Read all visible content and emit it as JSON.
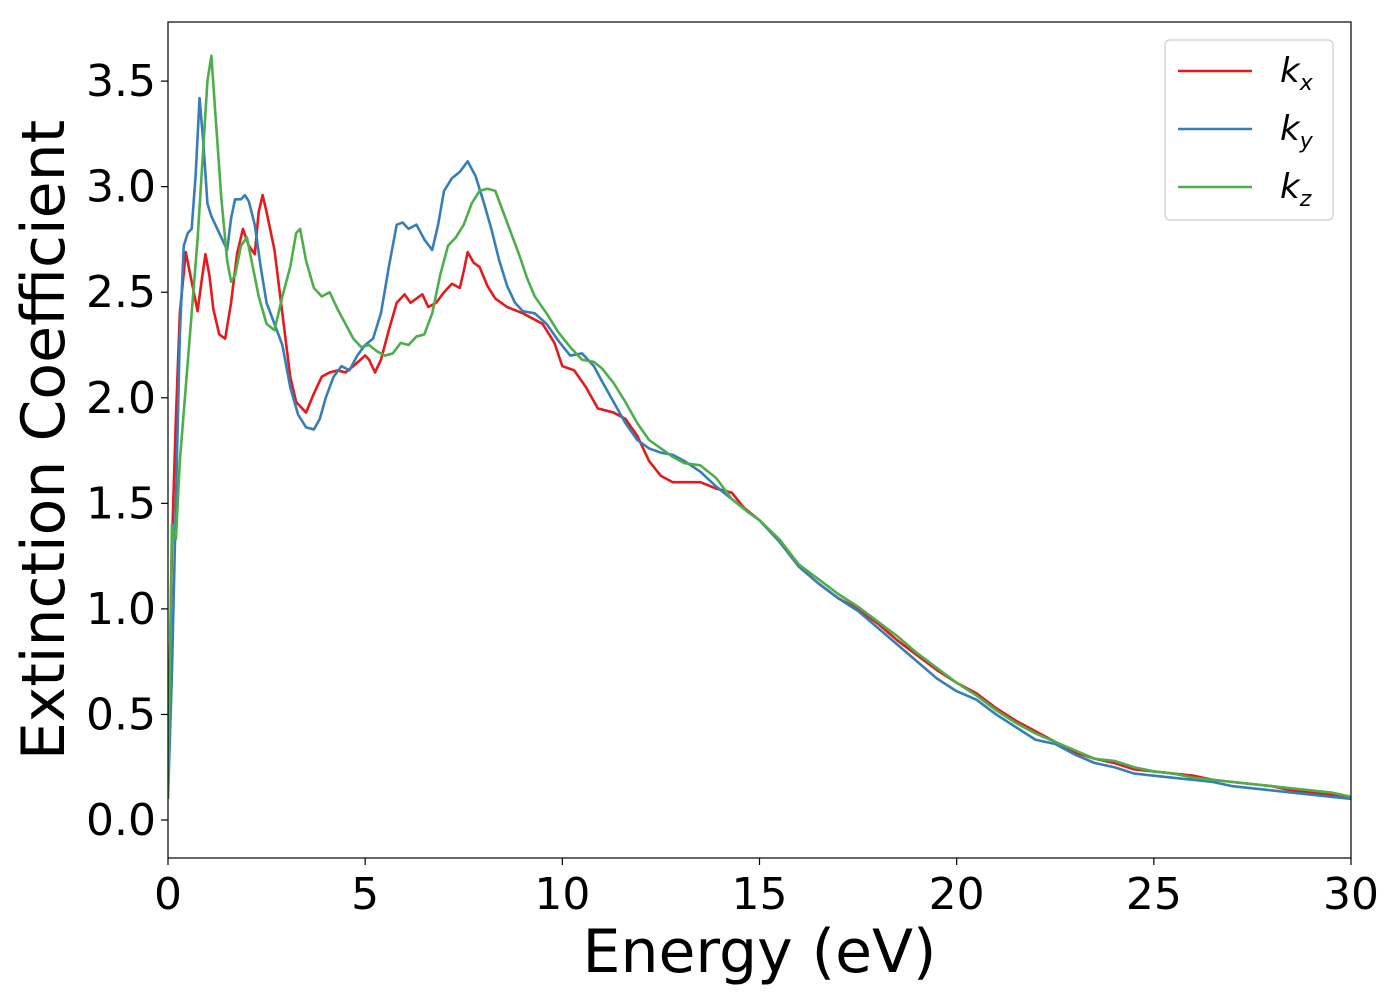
{
  "chart_data": {
    "type": "line",
    "xlabel": "Energy (eV)",
    "ylabel": "Extinction Coefficient",
    "xlim": [
      0,
      30
    ],
    "ylim": [
      -0.18,
      3.78
    ],
    "xticks": [
      "0",
      "5",
      "10",
      "15",
      "20",
      "25",
      "30"
    ],
    "yticks": [
      "0.0",
      "0.5",
      "1.0",
      "1.5",
      "2.0",
      "2.5",
      "3.0",
      "3.5"
    ],
    "grid": false,
    "legend_position": "top-right",
    "series": [
      {
        "name": "k",
        "subscript": "x",
        "color": "#e41a1c",
        "points": [
          [
            0,
            0.2
          ],
          [
            0.1,
            1.3
          ],
          [
            0.2,
            1.9
          ],
          [
            0.3,
            2.4
          ],
          [
            0.45,
            2.69
          ],
          [
            0.6,
            2.55
          ],
          [
            0.75,
            2.41
          ],
          [
            0.85,
            2.55
          ],
          [
            0.95,
            2.68
          ],
          [
            1.05,
            2.58
          ],
          [
            1.15,
            2.42
          ],
          [
            1.3,
            2.3
          ],
          [
            1.45,
            2.28
          ],
          [
            1.6,
            2.45
          ],
          [
            1.75,
            2.68
          ],
          [
            1.9,
            2.8
          ],
          [
            2.05,
            2.72
          ],
          [
            2.2,
            2.68
          ],
          [
            2.3,
            2.88
          ],
          [
            2.4,
            2.96
          ],
          [
            2.5,
            2.88
          ],
          [
            2.7,
            2.7
          ],
          [
            2.9,
            2.4
          ],
          [
            3.1,
            2.1
          ],
          [
            3.25,
            1.98
          ],
          [
            3.5,
            1.93
          ],
          [
            3.7,
            2.02
          ],
          [
            3.9,
            2.1
          ],
          [
            4.1,
            2.12
          ],
          [
            4.3,
            2.13
          ],
          [
            4.5,
            2.12
          ],
          [
            4.7,
            2.15
          ],
          [
            5.0,
            2.2
          ],
          [
            5.1,
            2.18
          ],
          [
            5.25,
            2.12
          ],
          [
            5.4,
            2.18
          ],
          [
            5.6,
            2.32
          ],
          [
            5.8,
            2.45
          ],
          [
            6.0,
            2.49
          ],
          [
            6.15,
            2.45
          ],
          [
            6.3,
            2.47
          ],
          [
            6.45,
            2.49
          ],
          [
            6.6,
            2.43
          ],
          [
            6.8,
            2.45
          ],
          [
            7.0,
            2.5
          ],
          [
            7.2,
            2.54
          ],
          [
            7.4,
            2.52
          ],
          [
            7.5,
            2.6
          ],
          [
            7.6,
            2.69
          ],
          [
            7.75,
            2.64
          ],
          [
            7.9,
            2.62
          ],
          [
            8.1,
            2.53
          ],
          [
            8.3,
            2.47
          ],
          [
            8.6,
            2.43
          ],
          [
            9.0,
            2.4
          ],
          [
            9.3,
            2.37
          ],
          [
            9.5,
            2.35
          ],
          [
            9.8,
            2.26
          ],
          [
            10.0,
            2.15
          ],
          [
            10.3,
            2.13
          ],
          [
            10.6,
            2.05
          ],
          [
            10.9,
            1.95
          ],
          [
            11.3,
            1.93
          ],
          [
            11.6,
            1.9
          ],
          [
            11.9,
            1.82
          ],
          [
            12.2,
            1.7
          ],
          [
            12.5,
            1.63
          ],
          [
            12.8,
            1.6
          ],
          [
            13.1,
            1.6
          ],
          [
            13.5,
            1.6
          ],
          [
            13.9,
            1.57
          ],
          [
            14.3,
            1.55
          ],
          [
            14.6,
            1.48
          ],
          [
            15.0,
            1.42
          ],
          [
            15.5,
            1.32
          ],
          [
            16.0,
            1.2
          ],
          [
            16.5,
            1.12
          ],
          [
            17.0,
            1.05
          ],
          [
            17.5,
            1.0
          ],
          [
            18.0,
            0.93
          ],
          [
            18.5,
            0.85
          ],
          [
            19.0,
            0.78
          ],
          [
            19.5,
            0.71
          ],
          [
            20.0,
            0.65
          ],
          [
            20.5,
            0.6
          ],
          [
            21.0,
            0.53
          ],
          [
            21.5,
            0.47
          ],
          [
            22.0,
            0.42
          ],
          [
            22.5,
            0.37
          ],
          [
            23.0,
            0.32
          ],
          [
            23.5,
            0.29
          ],
          [
            24.0,
            0.27
          ],
          [
            24.5,
            0.24
          ],
          [
            25.0,
            0.23
          ],
          [
            25.5,
            0.22
          ],
          [
            26.0,
            0.21
          ],
          [
            26.5,
            0.19
          ],
          [
            27.0,
            0.18
          ],
          [
            27.5,
            0.17
          ],
          [
            28.0,
            0.16
          ],
          [
            28.5,
            0.14
          ],
          [
            29.0,
            0.13
          ],
          [
            29.5,
            0.12
          ],
          [
            30.0,
            0.11
          ]
        ]
      },
      {
        "name": "k",
        "subscript": "y",
        "color": "#377eb8",
        "points": [
          [
            0,
            0.1
          ],
          [
            0.1,
            0.7
          ],
          [
            0.2,
            1.5
          ],
          [
            0.3,
            2.3
          ],
          [
            0.4,
            2.72
          ],
          [
            0.5,
            2.78
          ],
          [
            0.6,
            2.8
          ],
          [
            0.7,
            3.05
          ],
          [
            0.8,
            3.42
          ],
          [
            0.9,
            3.2
          ],
          [
            1.0,
            2.92
          ],
          [
            1.1,
            2.86
          ],
          [
            1.2,
            2.82
          ],
          [
            1.35,
            2.76
          ],
          [
            1.5,
            2.7
          ],
          [
            1.6,
            2.85
          ],
          [
            1.7,
            2.94
          ],
          [
            1.85,
            2.94
          ],
          [
            1.95,
            2.96
          ],
          [
            2.05,
            2.93
          ],
          [
            2.2,
            2.82
          ],
          [
            2.35,
            2.62
          ],
          [
            2.5,
            2.45
          ],
          [
            2.7,
            2.35
          ],
          [
            2.9,
            2.25
          ],
          [
            3.1,
            2.05
          ],
          [
            3.3,
            1.92
          ],
          [
            3.5,
            1.86
          ],
          [
            3.7,
            1.85
          ],
          [
            3.85,
            1.9
          ],
          [
            4.0,
            2.0
          ],
          [
            4.2,
            2.1
          ],
          [
            4.4,
            2.15
          ],
          [
            4.6,
            2.13
          ],
          [
            4.8,
            2.2
          ],
          [
            5.0,
            2.25
          ],
          [
            5.2,
            2.28
          ],
          [
            5.4,
            2.4
          ],
          [
            5.6,
            2.62
          ],
          [
            5.8,
            2.82
          ],
          [
            5.95,
            2.83
          ],
          [
            6.1,
            2.8
          ],
          [
            6.3,
            2.82
          ],
          [
            6.5,
            2.75
          ],
          [
            6.7,
            2.7
          ],
          [
            6.85,
            2.82
          ],
          [
            7.0,
            2.98
          ],
          [
            7.2,
            3.04
          ],
          [
            7.4,
            3.07
          ],
          [
            7.6,
            3.12
          ],
          [
            7.8,
            3.05
          ],
          [
            8.0,
            2.93
          ],
          [
            8.2,
            2.8
          ],
          [
            8.4,
            2.65
          ],
          [
            8.6,
            2.53
          ],
          [
            8.8,
            2.45
          ],
          [
            9.0,
            2.41
          ],
          [
            9.3,
            2.4
          ],
          [
            9.6,
            2.35
          ],
          [
            9.9,
            2.27
          ],
          [
            10.2,
            2.2
          ],
          [
            10.5,
            2.21
          ],
          [
            10.8,
            2.15
          ],
          [
            11.0,
            2.08
          ],
          [
            11.3,
            1.98
          ],
          [
            11.6,
            1.88
          ],
          [
            11.9,
            1.8
          ],
          [
            12.2,
            1.76
          ],
          [
            12.5,
            1.74
          ],
          [
            12.8,
            1.73
          ],
          [
            13.1,
            1.7
          ],
          [
            13.5,
            1.65
          ],
          [
            13.9,
            1.58
          ],
          [
            14.3,
            1.52
          ],
          [
            14.7,
            1.46
          ],
          [
            15.0,
            1.42
          ],
          [
            15.5,
            1.32
          ],
          [
            16.0,
            1.2
          ],
          [
            16.5,
            1.12
          ],
          [
            17.0,
            1.05
          ],
          [
            17.5,
            0.99
          ],
          [
            18.0,
            0.91
          ],
          [
            18.5,
            0.83
          ],
          [
            19.0,
            0.75
          ],
          [
            19.5,
            0.67
          ],
          [
            20.0,
            0.61
          ],
          [
            20.5,
            0.57
          ],
          [
            21.0,
            0.5
          ],
          [
            21.5,
            0.44
          ],
          [
            22.0,
            0.38
          ],
          [
            22.5,
            0.36
          ],
          [
            23.0,
            0.31
          ],
          [
            23.5,
            0.27
          ],
          [
            24.0,
            0.25
          ],
          [
            24.5,
            0.22
          ],
          [
            25.0,
            0.21
          ],
          [
            25.5,
            0.2
          ],
          [
            26.0,
            0.19
          ],
          [
            26.5,
            0.18
          ],
          [
            27.0,
            0.16
          ],
          [
            27.5,
            0.15
          ],
          [
            28.0,
            0.14
          ],
          [
            28.5,
            0.13
          ],
          [
            29.0,
            0.12
          ],
          [
            29.5,
            0.11
          ],
          [
            30.0,
            0.1
          ]
        ]
      },
      {
        "name": "k",
        "subscript": "z",
        "color": "#4daf4a",
        "points": [
          [
            0,
            0.1
          ],
          [
            0.1,
            1.4
          ],
          [
            0.2,
            1.33
          ],
          [
            0.3,
            1.7
          ],
          [
            0.45,
            2.05
          ],
          [
            0.6,
            2.4
          ],
          [
            0.75,
            2.75
          ],
          [
            0.9,
            3.2
          ],
          [
            1.0,
            3.5
          ],
          [
            1.1,
            3.62
          ],
          [
            1.2,
            3.35
          ],
          [
            1.35,
            2.95
          ],
          [
            1.5,
            2.65
          ],
          [
            1.6,
            2.55
          ],
          [
            1.7,
            2.58
          ],
          [
            1.85,
            2.72
          ],
          [
            2.0,
            2.76
          ],
          [
            2.15,
            2.62
          ],
          [
            2.3,
            2.48
          ],
          [
            2.5,
            2.35
          ],
          [
            2.7,
            2.32
          ],
          [
            2.9,
            2.48
          ],
          [
            3.1,
            2.62
          ],
          [
            3.25,
            2.78
          ],
          [
            3.35,
            2.8
          ],
          [
            3.5,
            2.65
          ],
          [
            3.7,
            2.52
          ],
          [
            3.9,
            2.48
          ],
          [
            4.1,
            2.5
          ],
          [
            4.3,
            2.42
          ],
          [
            4.5,
            2.35
          ],
          [
            4.7,
            2.28
          ],
          [
            4.9,
            2.24
          ],
          [
            5.1,
            2.25
          ],
          [
            5.3,
            2.22
          ],
          [
            5.5,
            2.2
          ],
          [
            5.7,
            2.21
          ],
          [
            5.9,
            2.26
          ],
          [
            6.1,
            2.25
          ],
          [
            6.3,
            2.29
          ],
          [
            6.5,
            2.3
          ],
          [
            6.7,
            2.4
          ],
          [
            6.9,
            2.58
          ],
          [
            7.1,
            2.72
          ],
          [
            7.3,
            2.76
          ],
          [
            7.5,
            2.82
          ],
          [
            7.7,
            2.92
          ],
          [
            7.9,
            2.98
          ],
          [
            8.1,
            2.99
          ],
          [
            8.3,
            2.98
          ],
          [
            8.5,
            2.88
          ],
          [
            8.7,
            2.78
          ],
          [
            8.9,
            2.68
          ],
          [
            9.1,
            2.57
          ],
          [
            9.3,
            2.48
          ],
          [
            9.6,
            2.4
          ],
          [
            9.9,
            2.31
          ],
          [
            10.2,
            2.24
          ],
          [
            10.5,
            2.18
          ],
          [
            10.8,
            2.17
          ],
          [
            11.0,
            2.14
          ],
          [
            11.3,
            2.07
          ],
          [
            11.6,
            1.98
          ],
          [
            11.9,
            1.88
          ],
          [
            12.2,
            1.8
          ],
          [
            12.5,
            1.76
          ],
          [
            12.8,
            1.72
          ],
          [
            13.1,
            1.69
          ],
          [
            13.5,
            1.68
          ],
          [
            13.9,
            1.62
          ],
          [
            14.3,
            1.52
          ],
          [
            14.7,
            1.46
          ],
          [
            15.0,
            1.42
          ],
          [
            15.5,
            1.33
          ],
          [
            16.0,
            1.21
          ],
          [
            16.5,
            1.14
          ],
          [
            17.0,
            1.07
          ],
          [
            17.5,
            1.01
          ],
          [
            18.0,
            0.94
          ],
          [
            18.5,
            0.87
          ],
          [
            19.0,
            0.79
          ],
          [
            19.5,
            0.72
          ],
          [
            20.0,
            0.65
          ],
          [
            20.5,
            0.59
          ],
          [
            21.0,
            0.52
          ],
          [
            21.5,
            0.46
          ],
          [
            22.0,
            0.41
          ],
          [
            22.5,
            0.37
          ],
          [
            23.0,
            0.33
          ],
          [
            23.5,
            0.29
          ],
          [
            24.0,
            0.28
          ],
          [
            24.5,
            0.25
          ],
          [
            25.0,
            0.23
          ],
          [
            25.5,
            0.22
          ],
          [
            26.0,
            0.2
          ],
          [
            26.5,
            0.19
          ],
          [
            27.0,
            0.18
          ],
          [
            27.5,
            0.17
          ],
          [
            28.0,
            0.16
          ],
          [
            28.5,
            0.15
          ],
          [
            29.0,
            0.14
          ],
          [
            29.5,
            0.13
          ],
          [
            30.0,
            0.11
          ]
        ]
      }
    ]
  }
}
